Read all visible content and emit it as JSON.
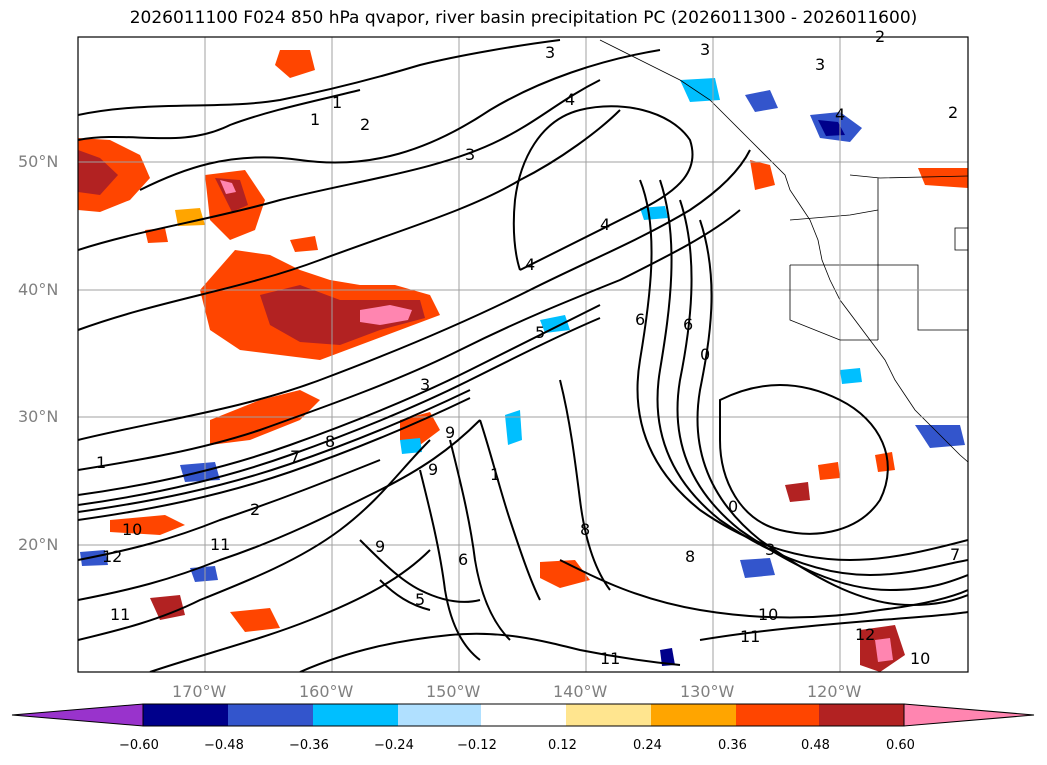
{
  "title": "2026011100 F024 850 hPa qvapor, river basin precipitation PC (2026011300 - 2026011600)",
  "lat_labels": [
    "50°N",
    "40°N",
    "30°N",
    "20°N"
  ],
  "lon_labels": [
    "170°W",
    "160°W",
    "150°W",
    "140°W",
    "130°W",
    "120°W"
  ],
  "colorbar": {
    "ticks": [
      "−0.60",
      "−0.48",
      "−0.36",
      "−0.24",
      "−0.12",
      "0.12",
      "0.24",
      "0.36",
      "0.48",
      "0.60"
    ],
    "colors": [
      "#9933cc",
      "#00008b",
      "#3355cc",
      "#00bfff",
      "#b0e0ff",
      "#ffffff",
      "#ffe58f",
      "#ffa500",
      "#ff4500",
      "#b22222",
      "#ff85b0"
    ]
  },
  "contour_labels": [
    "1",
    "1",
    "2",
    "3",
    "3",
    "2",
    "3",
    "4",
    "4",
    "4",
    "5",
    "6",
    "6",
    "7",
    "8",
    "9",
    "9",
    "10",
    "11",
    "12",
    "11",
    "5",
    "6",
    "8",
    "9",
    "0",
    "3",
    "10",
    "11",
    "11",
    "12",
    "10",
    "7",
    "0",
    "4",
    "2",
    "3",
    "1",
    "2",
    "3",
    "1",
    "8"
  ]
}
